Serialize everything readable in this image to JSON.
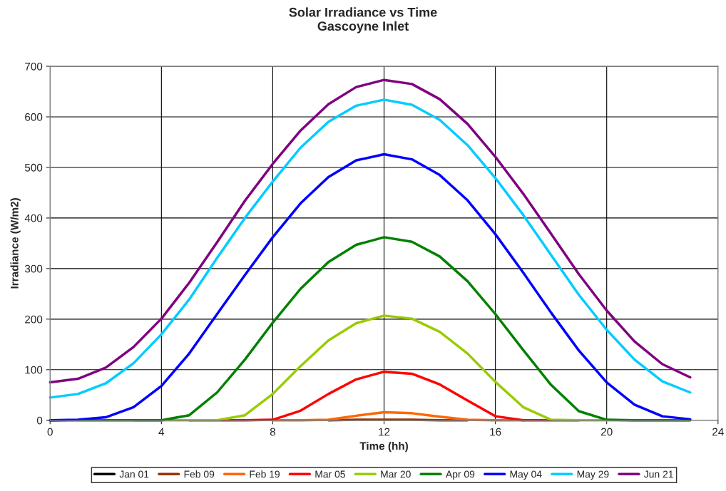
{
  "chart_data": {
    "type": "line",
    "title": "Solar Irradiance vs Time\nGascoyne Inlet",
    "xlabel": "Time (hh)",
    "ylabel": "Irradiance (W/m2)",
    "x": [
      0,
      1,
      2,
      3,
      4,
      5,
      6,
      7,
      8,
      9,
      10,
      11,
      12,
      13,
      14,
      15,
      16,
      17,
      18,
      19,
      20,
      21,
      22,
      23
    ],
    "xlim": [
      0,
      24
    ],
    "xticks": [
      0,
      4,
      8,
      12,
      16,
      20,
      24
    ],
    "ylim": [
      0,
      700
    ],
    "yticks": [
      0,
      100,
      200,
      300,
      400,
      500,
      600,
      700
    ],
    "grid": true,
    "legend": "bottom",
    "marker": "none",
    "line_style": "solid",
    "series": [
      {
        "name": "Jan 01",
        "color": "#000000",
        "values": [
          null,
          null,
          null,
          null,
          null,
          null,
          null,
          null,
          null,
          null,
          null,
          null,
          null,
          null,
          null,
          null,
          null,
          null,
          null,
          null,
          null,
          null,
          null,
          null
        ]
      },
      {
        "name": "Feb 09",
        "color": "#993300",
        "values": [
          null,
          null,
          null,
          null,
          null,
          null,
          null,
          null,
          null,
          null,
          0,
          1,
          1,
          1,
          0,
          0,
          null,
          null,
          null,
          null,
          null,
          null,
          null,
          null
        ]
      },
      {
        "name": "Feb 19",
        "color": "#ff6600",
        "values": [
          null,
          null,
          null,
          null,
          null,
          null,
          null,
          null,
          0,
          0,
          1,
          9,
          16,
          14,
          7,
          1,
          0,
          0,
          null,
          null,
          null,
          null,
          null,
          null
        ]
      },
      {
        "name": "Mar 05",
        "color": "#ff0000",
        "values": [
          null,
          null,
          null,
          null,
          null,
          0,
          0,
          0,
          1,
          19,
          52,
          81,
          96,
          92,
          71,
          39,
          8,
          0,
          0,
          0,
          null,
          null,
          null,
          null
        ]
      },
      {
        "name": "Mar 20",
        "color": "#99cc00",
        "values": [
          null,
          null,
          null,
          0,
          0,
          0,
          0,
          10,
          52,
          107,
          158,
          192,
          207,
          201,
          175,
          132,
          76,
          26,
          1,
          0,
          0,
          0,
          0,
          0
        ]
      },
      {
        "name": "Apr 09",
        "color": "#008000",
        "values": [
          0,
          0,
          0,
          0,
          0,
          10,
          55,
          120,
          193,
          260,
          313,
          347,
          362,
          353,
          324,
          275,
          210,
          139,
          70,
          18,
          1,
          0,
          0,
          0
        ]
      },
      {
        "name": "May 04",
        "color": "#0000ff",
        "values": [
          0,
          1,
          6,
          26,
          68,
          132,
          210,
          287,
          362,
          429,
          481,
          514,
          526,
          516,
          485,
          435,
          368,
          292,
          213,
          138,
          75,
          31,
          8,
          2
        ]
      },
      {
        "name": "May 29",
        "color": "#00ccff",
        "values": [
          45,
          52,
          73,
          113,
          170,
          239,
          321,
          400,
          472,
          539,
          590,
          622,
          634,
          624,
          594,
          544,
          479,
          406,
          327,
          248,
          179,
          120,
          77,
          55
        ]
      },
      {
        "name": "Jun 21",
        "color": "#800080",
        "values": [
          75,
          82,
          104,
          145,
          201,
          272,
          352,
          434,
          507,
          573,
          625,
          659,
          673,
          665,
          635,
          586,
          521,
          448,
          369,
          289,
          217,
          156,
          111,
          85
        ]
      }
    ]
  }
}
